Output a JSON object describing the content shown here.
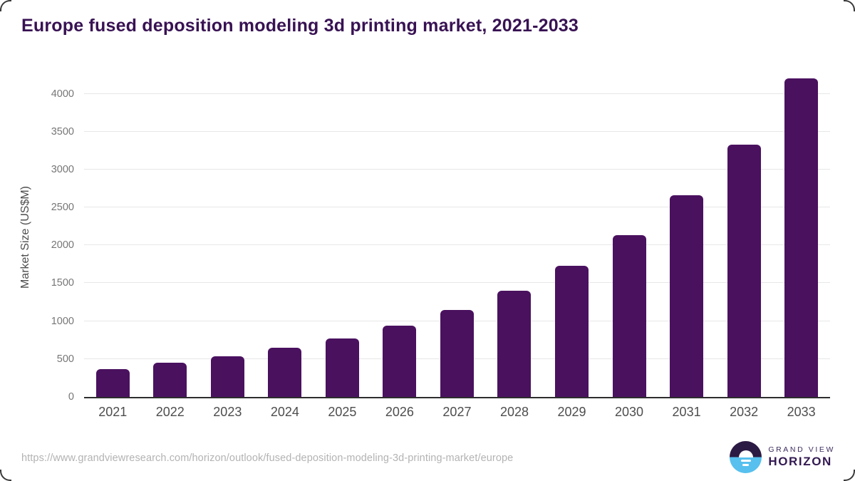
{
  "title": "Europe fused deposition modeling 3d printing market, 2021-2033",
  "chart_data": {
    "type": "bar",
    "title": "Europe fused deposition modeling 3d printing market, 2021-2033",
    "categories": [
      "2021",
      "2022",
      "2023",
      "2024",
      "2025",
      "2026",
      "2027",
      "2028",
      "2029",
      "2030",
      "2031",
      "2032",
      "2033"
    ],
    "values": [
      370,
      450,
      540,
      645,
      775,
      940,
      1145,
      1400,
      1730,
      2130,
      2660,
      3330,
      4200
    ],
    "xlabel": "",
    "ylabel": "Market Size (US$M)",
    "ylim": [
      0,
      4200
    ],
    "yticks": [
      0,
      500,
      1000,
      1500,
      2000,
      2500,
      3000,
      3500,
      4000
    ],
    "grid": true,
    "legend": null,
    "bar_color": "#4a115f"
  },
  "footer": {
    "source_url": "https://www.grandviewresearch.com/horizon/outlook/fused-deposition-modeling-3d-printing-market/europe",
    "logo": {
      "line1": "GRAND VIEW",
      "line2": "HORIZON"
    }
  },
  "colors": {
    "title": "#381253",
    "bar": "#4a115f",
    "x_tick": "#4d4d4d",
    "y_tick": "#767676",
    "gridline": "#e7e7e7",
    "axis_line": "#2e2e2e",
    "url_text": "#b3b3b3",
    "logo_navy": "#2b1a43",
    "logo_blue": "#57c0ee"
  }
}
